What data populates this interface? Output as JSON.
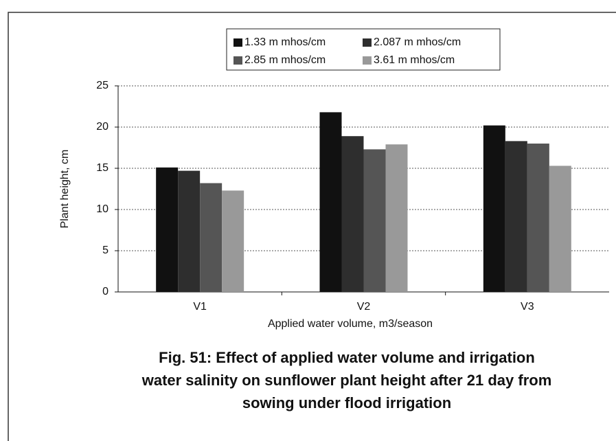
{
  "chart_data": {
    "type": "bar",
    "title": [
      "Fig. 51: Effect of applied water volume and irrigation",
      "water salinity on sunflower plant height after 21 day from",
      "sowing under flood irrigation"
    ],
    "xlabel": "Applied water volume, m3/season",
    "ylabel": "Plant height, cm",
    "categories": [
      "V1",
      "V2",
      "V3"
    ],
    "series": [
      {
        "name": "1.33 m mhos/cm",
        "color": "#111111",
        "values": [
          15.1,
          21.8,
          20.2
        ]
      },
      {
        "name": "2.087 m mhos/cm",
        "color": "#2e2e2e",
        "values": [
          14.7,
          18.9,
          18.3
        ]
      },
      {
        "name": "2.85 m mhos/cm",
        "color": "#555555",
        "values": [
          13.2,
          17.3,
          18.0
        ]
      },
      {
        "name": "3.61 m mhos/cm",
        "color": "#999999",
        "values": [
          12.3,
          17.9,
          15.3
        ]
      }
    ],
    "ylim": [
      0,
      25
    ],
    "yticks": [
      0,
      5,
      10,
      15,
      20,
      25
    ],
    "grid": true,
    "legend": "top"
  }
}
